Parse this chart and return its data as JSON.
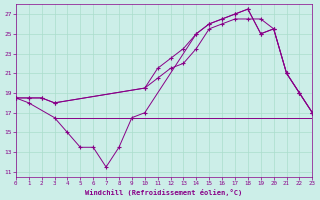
{
  "xlabel": "Windchill (Refroidissement éolien,°C)",
  "background_color": "#cceee8",
  "grid_color": "#aaddcc",
  "line_color": "#880088",
  "x_ticks": [
    0,
    1,
    2,
    3,
    4,
    5,
    6,
    7,
    8,
    9,
    10,
    11,
    12,
    13,
    14,
    15,
    16,
    17,
    18,
    19,
    20,
    21,
    22,
    23
  ],
  "y_ticks": [
    11,
    13,
    15,
    17,
    19,
    21,
    23,
    25,
    27
  ],
  "xlim": [
    0,
    23
  ],
  "ylim": [
    10.5,
    28
  ],
  "curve1_x": [
    0,
    1,
    2,
    3,
    10,
    11,
    12,
    13,
    14,
    15,
    16,
    17,
    18,
    19,
    20,
    21,
    22,
    23
  ],
  "curve1_y": [
    18.5,
    18.5,
    18.5,
    18.0,
    19.5,
    21.5,
    22.5,
    23.5,
    25.0,
    26.0,
    26.5,
    27.0,
    27.5,
    25.0,
    25.5,
    21.0,
    19.0,
    17.0
  ],
  "curve2_x": [
    0,
    1,
    2,
    3,
    10,
    11,
    12,
    13,
    14,
    15,
    16,
    17,
    18,
    19,
    20,
    21,
    22,
    23
  ],
  "curve2_y": [
    18.5,
    18.5,
    18.5,
    18.0,
    19.5,
    20.5,
    21.5,
    22.0,
    23.5,
    25.5,
    26.0,
    26.5,
    26.5,
    26.5,
    25.5,
    21.0,
    19.0,
    17.0
  ],
  "curve3_x": [
    0,
    1,
    3,
    4,
    5,
    6,
    7,
    8,
    9,
    10,
    14,
    15,
    16,
    17,
    18,
    19,
    20,
    21,
    22,
    23
  ],
  "curve3_y": [
    18.5,
    18.0,
    16.5,
    15.0,
    13.5,
    13.5,
    11.5,
    13.5,
    16.5,
    17.0,
    25.0,
    26.0,
    26.5,
    27.0,
    27.5,
    25.0,
    25.5,
    21.0,
    19.0,
    17.0
  ],
  "flat_x": [
    3,
    4,
    5,
    6,
    7,
    8,
    9,
    10,
    11,
    12,
    13,
    14,
    15,
    16,
    17,
    18,
    19,
    22,
    23
  ],
  "flat_y": [
    16.5,
    16.5,
    16.5,
    16.5,
    16.5,
    16.5,
    16.5,
    16.5,
    16.5,
    16.5,
    16.5,
    16.5,
    16.5,
    16.5,
    16.5,
    16.5,
    16.5,
    16.5,
    16.5
  ]
}
